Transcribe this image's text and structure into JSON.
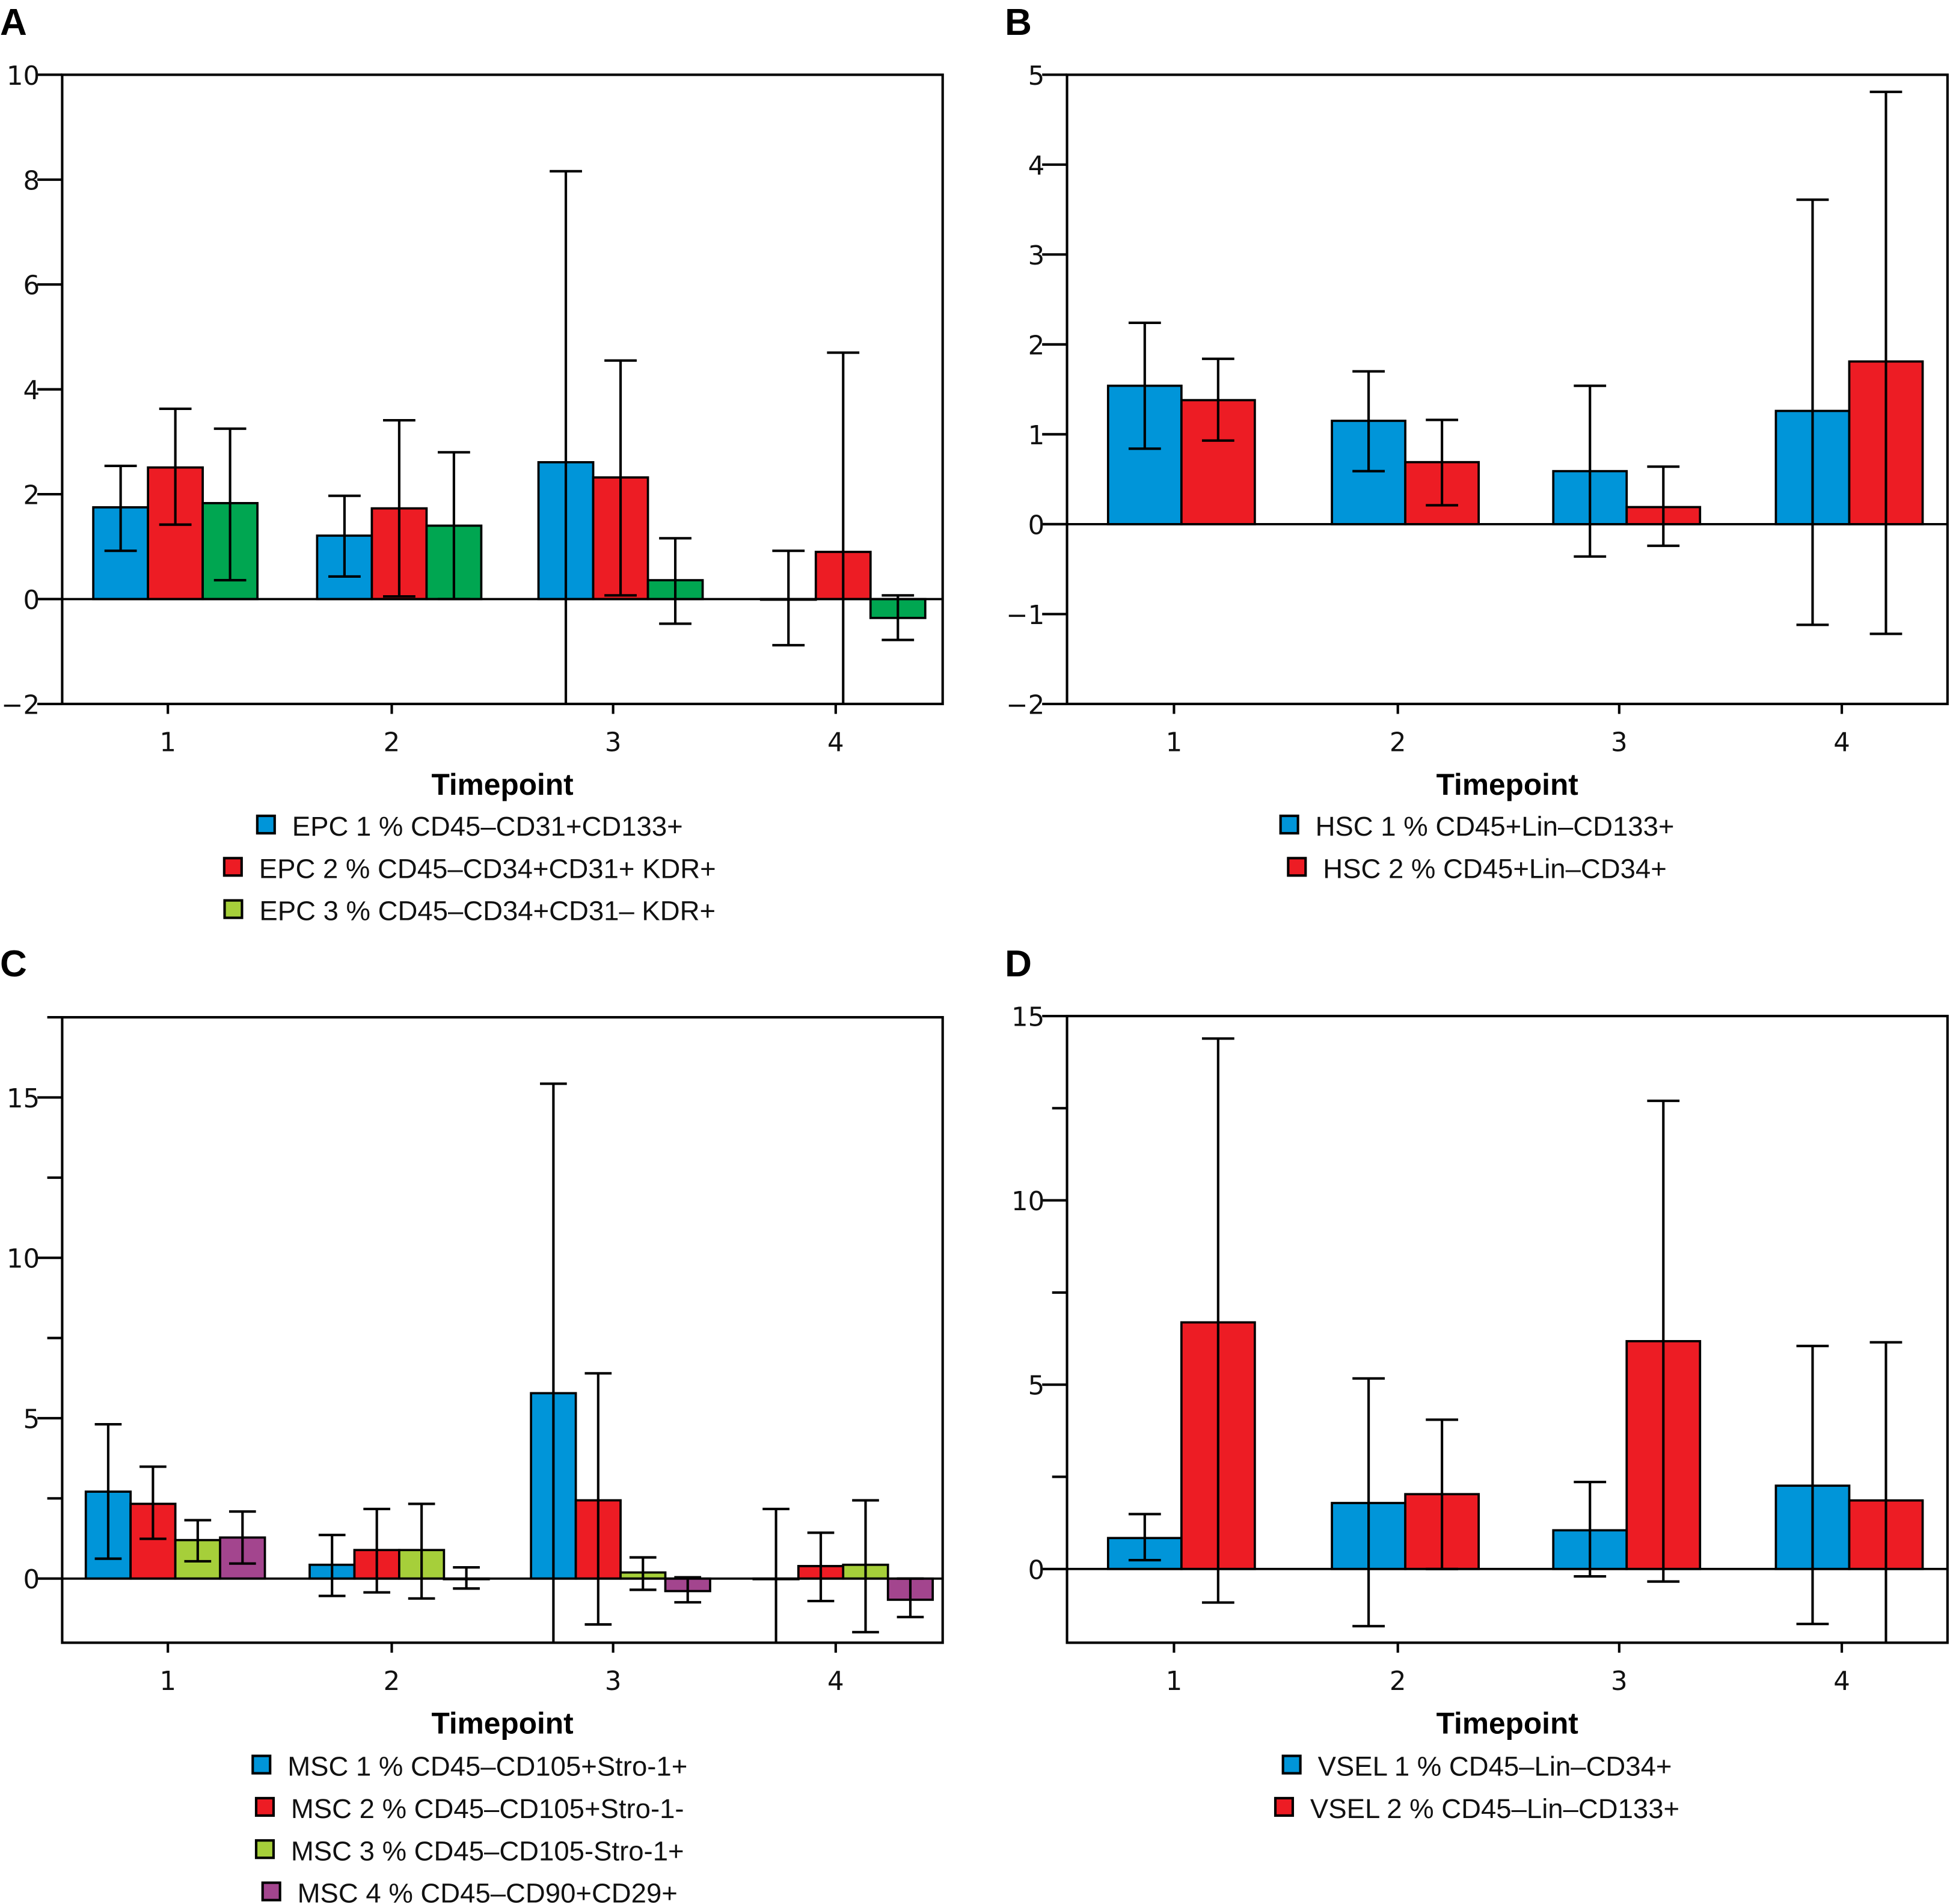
{
  "chart_data": [
    {
      "panel": "A",
      "type": "bar",
      "xlabel": "Timepoint",
      "ylabel": "",
      "categories": [
        "1",
        "2",
        "3",
        "4"
      ],
      "ylim": [
        -2,
        10
      ],
      "yticks": [
        -2,
        0,
        2,
        4,
        6,
        8,
        10
      ],
      "yticks_minor": [],
      "y_tick_labels": [
        "−2",
        "0",
        "2",
        "4",
        "6",
        "8",
        "10"
      ],
      "legend_placement": "bottom",
      "grid": false,
      "series": [
        {
          "name": "EPC 1 % CD45–CD31+CD133+",
          "color": "#0095d9",
          "legend_color": "#0095d9",
          "values": [
            1.75,
            1.21,
            2.61,
            0.0
          ],
          "err_low": [
            0.92,
            0.43,
            -2.0,
            -0.88
          ],
          "err_high": [
            2.54,
            1.97,
            8.16,
            0.92
          ]
        },
        {
          "name": "EPC 2 % CD45–CD34+CD31+ KDR+",
          "color": "#ed1c24",
          "legend_color": "#ed1c24",
          "values": [
            2.51,
            1.73,
            2.32,
            0.9
          ],
          "err_low": [
            1.42,
            0.05,
            0.07,
            -2.0
          ],
          "err_high": [
            3.63,
            3.41,
            4.55,
            4.7
          ]
        },
        {
          "name": "EPC 3 % CD45–CD34+CD31– KDR+",
          "color": "#00a651",
          "legend_color": "#a6cf3a",
          "values": [
            1.83,
            1.4,
            0.36,
            -0.36
          ],
          "err_low": [
            0.36,
            0.0,
            -0.47,
            -0.78
          ],
          "err_high": [
            3.25,
            2.8,
            1.16,
            0.07
          ]
        }
      ]
    },
    {
      "panel": "B",
      "type": "bar",
      "xlabel": "Timepoint",
      "ylabel": "",
      "categories": [
        "1",
        "2",
        "3",
        "4"
      ],
      "ylim": [
        -2,
        5
      ],
      "yticks": [
        -2,
        -1,
        0,
        1,
        2,
        3,
        4,
        5
      ],
      "yticks_minor": [],
      "y_tick_labels": [
        "−2",
        "−1",
        "0",
        "1",
        "2",
        "3",
        "4",
        "5"
      ],
      "legend_placement": "bottom",
      "grid": false,
      "series": [
        {
          "name": "HSC 1 % CD45+Lin–CD133+",
          "color": "#0095d9",
          "legend_color": "#0095d9",
          "values": [
            1.54,
            1.15,
            0.59,
            1.26
          ],
          "err_low": [
            0.84,
            0.59,
            -0.36,
            -1.12
          ],
          "err_high": [
            2.24,
            1.7,
            1.54,
            3.61
          ]
        },
        {
          "name": "HSC 2 % CD45+Lin–CD34+",
          "color": "#ed1c24",
          "legend_color": "#ed1c24",
          "values": [
            1.38,
            0.69,
            0.19,
            1.81
          ],
          "err_low": [
            0.93,
            0.21,
            -0.24,
            -1.22
          ],
          "err_high": [
            1.84,
            1.16,
            0.64,
            4.81
          ]
        }
      ]
    },
    {
      "panel": "C",
      "type": "bar",
      "xlabel": "Timepoint",
      "ylabel": "",
      "categories": [
        "1",
        "2",
        "3",
        "4"
      ],
      "ylim": [
        -2,
        17.5
      ],
      "yticks": [
        0,
        5,
        10,
        15
      ],
      "yticks_minor": [
        2.5,
        7.5,
        12.5,
        17.5
      ],
      "y_tick_labels": [
        "0",
        "5",
        "10",
        "15"
      ],
      "legend_placement": "bottom",
      "grid": false,
      "series": [
        {
          "name": "MSC 1 % CD45–CD105+Stro-1+",
          "color": "#0095d9",
          "legend_color": "#0095d9",
          "values": [
            2.71,
            0.43,
            5.78,
            0.0
          ],
          "err_low": [
            0.62,
            -0.54,
            -2.0,
            -2.0
          ],
          "err_high": [
            4.81,
            1.36,
            15.43,
            2.17
          ]
        },
        {
          "name": "MSC 2 % CD45–CD105+Stro-1-",
          "color": "#ed1c24",
          "legend_color": "#ed1c24",
          "values": [
            2.33,
            0.89,
            2.44,
            0.39
          ],
          "err_low": [
            1.24,
            -0.43,
            -1.43,
            -0.7
          ],
          "err_high": [
            3.49,
            2.17,
            6.4,
            1.43
          ]
        },
        {
          "name": "MSC 3 % CD45–CD105-Stro-1+",
          "color": "#a6cf3a",
          "legend_color": "#a6cf3a",
          "values": [
            1.2,
            0.89,
            0.19,
            0.43
          ],
          "err_low": [
            0.54,
            -0.62,
            -0.35,
            -1.67
          ],
          "err_high": [
            1.82,
            2.33,
            0.66,
            2.44
          ]
        },
        {
          "name": "MSC 4 % CD45–CD90+CD29+",
          "color": "#a3458e",
          "legend_color": "#a3458e",
          "values": [
            1.28,
            0.0,
            -0.39,
            -0.66
          ],
          "err_low": [
            0.47,
            -0.31,
            -0.74,
            -1.2
          ],
          "err_high": [
            2.09,
            0.35,
            0.04,
            0.0
          ]
        }
      ]
    },
    {
      "panel": "D",
      "type": "bar",
      "xlabel": "Timepoint",
      "ylabel": "",
      "categories": [
        "1",
        "2",
        "3",
        "4"
      ],
      "ylim": [
        -2,
        15
      ],
      "yticks": [
        0,
        5,
        10,
        15
      ],
      "yticks_minor": [
        2.5,
        7.5,
        12.5
      ],
      "y_tick_labels": [
        "0",
        "5",
        "10",
        "15"
      ],
      "legend_placement": "bottom",
      "grid": false,
      "series": [
        {
          "name": "VSEL 1 % CD45–Lin–CD34+",
          "color": "#0095d9",
          "legend_color": "#0095d9",
          "values": [
            0.84,
            1.79,
            1.05,
            2.26
          ],
          "err_low": [
            0.24,
            -1.55,
            -0.2,
            -1.49
          ],
          "err_high": [
            1.49,
            5.17,
            2.36,
            6.05
          ]
        },
        {
          "name": "VSEL 2 % CD45–Lin–CD133+",
          "color": "#ed1c24",
          "legend_color": "#ed1c24",
          "values": [
            6.69,
            2.03,
            6.18,
            1.86
          ],
          "err_low": [
            -0.91,
            0.0,
            -0.34,
            -2.0
          ],
          "err_high": [
            14.39,
            4.05,
            12.7,
            6.15
          ]
        }
      ]
    }
  ]
}
